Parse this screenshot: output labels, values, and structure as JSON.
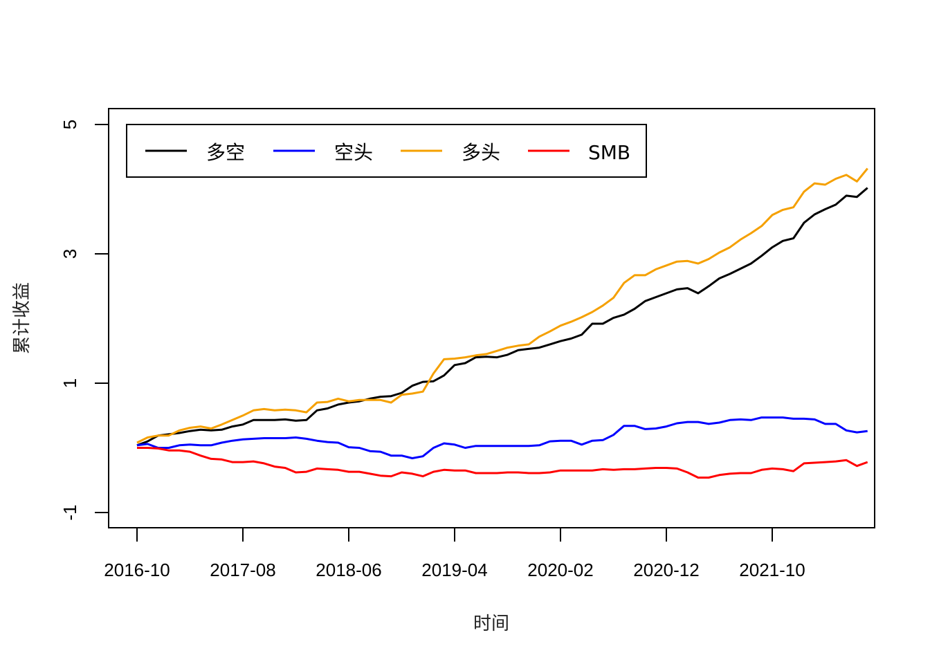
{
  "chart_data": {
    "type": "line",
    "title": "",
    "xlabel": "时间",
    "ylabel": "累计收益",
    "x_tick_labels": [
      "2016-10",
      "2017-08",
      "2018-06",
      "2019-04",
      "2020-02",
      "2020-12",
      "2021-10"
    ],
    "y_tick_labels": [
      "-1",
      "1",
      "3",
      "5"
    ],
    "y_ticks": [
      -1,
      1,
      3,
      5
    ],
    "ylim": [
      -1.23,
      5.25
    ],
    "x_start": "2016-10",
    "x_end": "2022-05",
    "legend_position": "top-left",
    "grid": false,
    "series": [
      {
        "name": "多空",
        "color": "#000000",
        "values": [
          0.04,
          0.1,
          0.19,
          0.21,
          0.23,
          0.26,
          0.28,
          0.27,
          0.28,
          0.33,
          0.36,
          0.43,
          0.43,
          0.43,
          0.44,
          0.42,
          0.43,
          0.58,
          0.61,
          0.67,
          0.7,
          0.72,
          0.76,
          0.79,
          0.8,
          0.85,
          0.96,
          1.02,
          1.03,
          1.12,
          1.28,
          1.31,
          1.4,
          1.41,
          1.4,
          1.44,
          1.51,
          1.53,
          1.55,
          1.6,
          1.65,
          1.69,
          1.75,
          1.92,
          1.92,
          2.01,
          2.06,
          2.15,
          2.27,
          2.33,
          2.39,
          2.45,
          2.47,
          2.39,
          2.5,
          2.62,
          2.69,
          2.77,
          2.85,
          2.97,
          3.1,
          3.2,
          3.24,
          3.48,
          3.61,
          3.69,
          3.76,
          3.9,
          3.88,
          4.02
        ]
      },
      {
        "name": "空头",
        "color": "#0000ff",
        "values": [
          0.04,
          0.06,
          0.0,
          0.0,
          0.04,
          0.05,
          0.04,
          0.04,
          0.08,
          0.11,
          0.13,
          0.14,
          0.15,
          0.15,
          0.15,
          0.16,
          0.14,
          0.11,
          0.09,
          0.08,
          0.01,
          0.0,
          -0.05,
          -0.06,
          -0.12,
          -0.12,
          -0.16,
          -0.13,
          0.0,
          0.07,
          0.05,
          0.0,
          0.03,
          0.03,
          0.03,
          0.03,
          0.03,
          0.03,
          0.04,
          0.1,
          0.11,
          0.11,
          0.05,
          0.11,
          0.12,
          0.2,
          0.34,
          0.34,
          0.29,
          0.3,
          0.33,
          0.38,
          0.4,
          0.4,
          0.37,
          0.39,
          0.43,
          0.44,
          0.43,
          0.47,
          0.47,
          0.47,
          0.45,
          0.45,
          0.44,
          0.37,
          0.37,
          0.27,
          0.24,
          0.26
        ]
      },
      {
        "name": "多头",
        "color": "#f5a000",
        "values": [
          0.08,
          0.16,
          0.19,
          0.19,
          0.27,
          0.31,
          0.33,
          0.3,
          0.36,
          0.43,
          0.5,
          0.58,
          0.6,
          0.58,
          0.59,
          0.58,
          0.55,
          0.7,
          0.71,
          0.76,
          0.72,
          0.74,
          0.74,
          0.74,
          0.7,
          0.82,
          0.84,
          0.87,
          1.15,
          1.37,
          1.38,
          1.4,
          1.43,
          1.45,
          1.5,
          1.55,
          1.58,
          1.6,
          1.72,
          1.8,
          1.89,
          1.95,
          2.02,
          2.1,
          2.2,
          2.32,
          2.55,
          2.67,
          2.67,
          2.76,
          2.82,
          2.88,
          2.89,
          2.85,
          2.92,
          3.02,
          3.1,
          3.22,
          3.32,
          3.43,
          3.6,
          3.68,
          3.72,
          3.96,
          4.09,
          4.07,
          4.16,
          4.22,
          4.12,
          4.32
        ]
      },
      {
        "name": "SMB",
        "color": "#ff0000",
        "values": [
          0.0,
          0.0,
          -0.01,
          -0.04,
          -0.04,
          -0.06,
          -0.12,
          -0.17,
          -0.18,
          -0.22,
          -0.22,
          -0.21,
          -0.24,
          -0.29,
          -0.31,
          -0.38,
          -0.37,
          -0.32,
          -0.33,
          -0.34,
          -0.37,
          -0.37,
          -0.4,
          -0.43,
          -0.44,
          -0.38,
          -0.4,
          -0.44,
          -0.37,
          -0.34,
          -0.35,
          -0.35,
          -0.39,
          -0.39,
          -0.39,
          -0.38,
          -0.38,
          -0.39,
          -0.39,
          -0.38,
          -0.35,
          -0.35,
          -0.35,
          -0.35,
          -0.33,
          -0.34,
          -0.33,
          -0.33,
          -0.32,
          -0.31,
          -0.31,
          -0.32,
          -0.38,
          -0.46,
          -0.46,
          -0.42,
          -0.4,
          -0.39,
          -0.39,
          -0.34,
          -0.32,
          -0.33,
          -0.36,
          -0.24,
          -0.23,
          -0.22,
          -0.21,
          -0.19,
          -0.28,
          -0.22
        ]
      }
    ]
  }
}
